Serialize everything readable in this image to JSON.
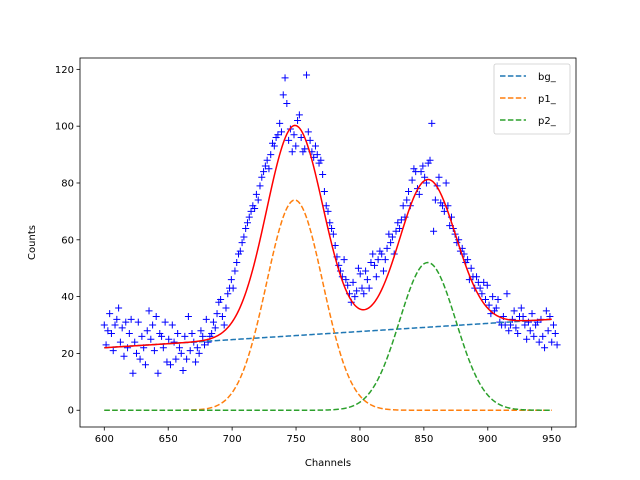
{
  "chart_data": {
    "type": "scatter",
    "xlabel": "Channels",
    "ylabel": "Counts",
    "xlim": [
      581,
      969
    ],
    "ylim": [
      -5.9,
      124
    ],
    "xticks": [
      600,
      650,
      700,
      750,
      800,
      850,
      900,
      950
    ],
    "yticks": [
      0,
      20,
      40,
      60,
      80,
      100,
      120
    ],
    "grid": false,
    "legend_position": "top-right",
    "data_points": {
      "marker": "+",
      "color": "#0000ff",
      "x_start": 600,
      "x_step": 1.4,
      "y": [
        30,
        23,
        28,
        34,
        27,
        21,
        30,
        32,
        36,
        24,
        29,
        19,
        31,
        22,
        27,
        32,
        13,
        24,
        20,
        31,
        18,
        26,
        22,
        16,
        28,
        35,
        25,
        30,
        21,
        33,
        13,
        27,
        26,
        22,
        31,
        17,
        25,
        16,
        30,
        24,
        18,
        27,
        22,
        20,
        14,
        26,
        18,
        33,
        21,
        27,
        24,
        17,
        22,
        20,
        28,
        26,
        23,
        32,
        24,
        26,
        27,
        31,
        29,
        34,
        38,
        39,
        33,
        30,
        36,
        41,
        43,
        46,
        43,
        49,
        52,
        55,
        56,
        59,
        61,
        64,
        66,
        68,
        70,
        72,
        71,
        76,
        74,
        79,
        82,
        84,
        86,
        88,
        85,
        90,
        94,
        93,
        96,
        97,
        101,
        98,
        111,
        117,
        108,
        95,
        99,
        91,
        97,
        93,
        102,
        104,
        96,
        91,
        92,
        118,
        98,
        95,
        91,
        89,
        93,
        90,
        87,
        88,
        83,
        77,
        72,
        70,
        66,
        64,
        62,
        58,
        54,
        51,
        49,
        47,
        53,
        46,
        44,
        41,
        38,
        45,
        40,
        42,
        50,
        48,
        43,
        41,
        49,
        46,
        43,
        52,
        55,
        51,
        47,
        53,
        56,
        55,
        49,
        53,
        57,
        62,
        59,
        61,
        55,
        63,
        66,
        64,
        67,
        72,
        68,
        74,
        77,
        72,
        81,
        85,
        84,
        78,
        76,
        84,
        86,
        82,
        80,
        87,
        88,
        101,
        63,
        74,
        79,
        82,
        73,
        72,
        70,
        80,
        72,
        65,
        68,
        64,
        62,
        59,
        60,
        56,
        57,
        55,
        52,
        53,
        46,
        50,
        47,
        43,
        47,
        45,
        43,
        41,
        45,
        39,
        44,
        37,
        34,
        40,
        35,
        36,
        39,
        31,
        30,
        33,
        30,
        41,
        28,
        30,
        32,
        35,
        29,
        27,
        33,
        36,
        33,
        30,
        25,
        31,
        28,
        34,
        26,
        30,
        31,
        24,
        32,
        26,
        22,
        35,
        28,
        33,
        24,
        30,
        27,
        23
      ],
      "label": ""
    },
    "series": [
      {
        "name": "bg_",
        "color": "#1f77b4",
        "dashed": true,
        "model": "linear",
        "params": {
          "intercept": 22,
          "slope": 0.0286,
          "x0": 600
        }
      },
      {
        "name": "p1_",
        "color": "#ff7f0e",
        "dashed": true,
        "model": "gaussian",
        "params": {
          "amplitude": 74,
          "center": 749,
          "sigma": 22
        }
      },
      {
        "name": "p2_",
        "color": "#2ca02c",
        "dashed": true,
        "model": "gaussian",
        "params": {
          "amplitude": 52,
          "center": 853,
          "sigma": 22
        }
      },
      {
        "name": "",
        "color": "#ff0000",
        "dashed": false,
        "model": "sum",
        "params": {}
      }
    ],
    "x_range": [
      600,
      950
    ]
  }
}
